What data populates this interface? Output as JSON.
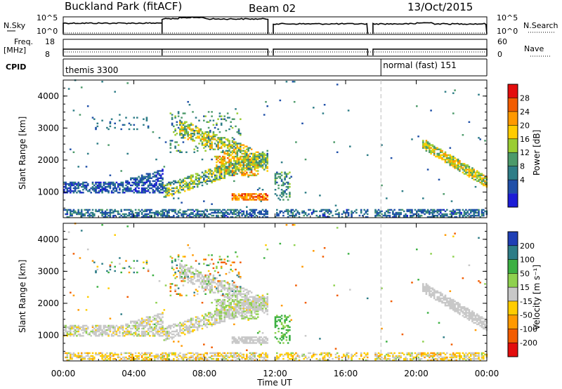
{
  "header": {
    "title": "Buckland Park (fitACF)",
    "beam": "Beam 02",
    "date": "13/Oct/2015"
  },
  "top_panels": {
    "nsky": {
      "label": "N.Sky",
      "ticks": [
        "10^5",
        "10^0"
      ],
      "right_ticks": [
        "10^5",
        "10^0"
      ],
      "right_label": "N.Search"
    },
    "freq": {
      "label": "Freq.",
      "unit": "[MHz]",
      "ticks": [
        "18",
        "8"
      ],
      "right_ticks": [
        "60",
        "0"
      ],
      "right_label": "Nave"
    },
    "cpid": {
      "label": "CPID",
      "modes": [
        {
          "name": "themis 3300",
          "start_hour": 0.2
        },
        {
          "name": "normal (fast) 151",
          "start_hour": 18.0
        }
      ]
    }
  },
  "power_colorbar": {
    "label": "Power [dB]",
    "ticks": [
      "28",
      "24",
      "20",
      "16",
      "12",
      "8",
      "4"
    ],
    "colors": [
      "#e30d0d",
      "#f25c00",
      "#ff9900",
      "#ffcc00",
      "#9acd32",
      "#4c9a6a",
      "#2e7d87",
      "#1f4fa8",
      "#1c1cd6"
    ]
  },
  "velocity_colorbar": {
    "label": "Velocity [m s⁻¹]",
    "ticks": [
      "200",
      "100",
      "50",
      "15",
      "-15",
      "-50",
      "-100",
      "-200"
    ],
    "colors": [
      "#1f3fb5",
      "#2e7d87",
      "#3cb043",
      "#8fd14f",
      "#c8c8c8",
      "#ffcc00",
      "#ff9900",
      "#f25c00",
      "#e30d0d"
    ]
  },
  "x_axis": {
    "label": "Time UT",
    "ticks": [
      "00:00",
      "04:00",
      "08:00",
      "12:00",
      "16:00",
      "20:00",
      "00:00"
    ]
  },
  "chart_data": [
    {
      "type": "heatmap",
      "quantity": "Power",
      "xlabel": "Time UT",
      "ylabel": "Slant Range [km]",
      "xlim": [
        0,
        24
      ],
      "ylim": [
        200,
        4500
      ],
      "yticks": [
        1000,
        2000,
        3000,
        4000
      ],
      "data_gaps_hours": [
        [
          11.6,
          11.9
        ],
        [
          17.25,
          17.55
        ]
      ],
      "color_range_db": [
        0,
        30
      ],
      "regions": [
        {
          "name": "ground scatter",
          "t": [
            0,
            24
          ],
          "r": [
            200,
            450
          ],
          "level": 6
        },
        {
          "name": "morning echoes",
          "t": [
            0,
            5.5
          ],
          "r": [
            950,
            1300
          ],
          "level": 5
        },
        {
          "name": "late-morning arc",
          "t": [
            6,
            11
          ],
          "r": [
            700,
            2300
          ],
          "level": 18
        },
        {
          "name": "high-power band",
          "t": [
            9.5,
            11.5
          ],
          "r": [
            700,
            900
          ],
          "level": 26
        },
        {
          "name": "descending band",
          "t": [
            20.5,
            24
          ],
          "r": [
            1200,
            2500
          ],
          "level": 17
        }
      ]
    },
    {
      "type": "heatmap",
      "quantity": "Velocity",
      "xlabel": "Time UT",
      "ylabel": "Slant Range [km]",
      "xlim": [
        0,
        24
      ],
      "ylim": [
        200,
        4500
      ],
      "yticks": [
        1000,
        2000,
        3000,
        4000
      ],
      "color_range_ms": [
        -200,
        200
      ],
      "regions": [
        {
          "name": "ground scatter",
          "t": [
            0,
            24
          ],
          "r": [
            200,
            450
          ],
          "velocity": -30
        },
        {
          "name": "morning echoes",
          "t": [
            0,
            5.5
          ],
          "r": [
            950,
            1300
          ],
          "velocity": 0
        },
        {
          "name": "late-morning arc",
          "t": [
            6,
            11
          ],
          "r": [
            700,
            2300
          ],
          "velocity": 5
        },
        {
          "name": "descending band",
          "t": [
            20.5,
            24
          ],
          "r": [
            1200,
            2500
          ],
          "velocity": 0
        }
      ]
    }
  ]
}
